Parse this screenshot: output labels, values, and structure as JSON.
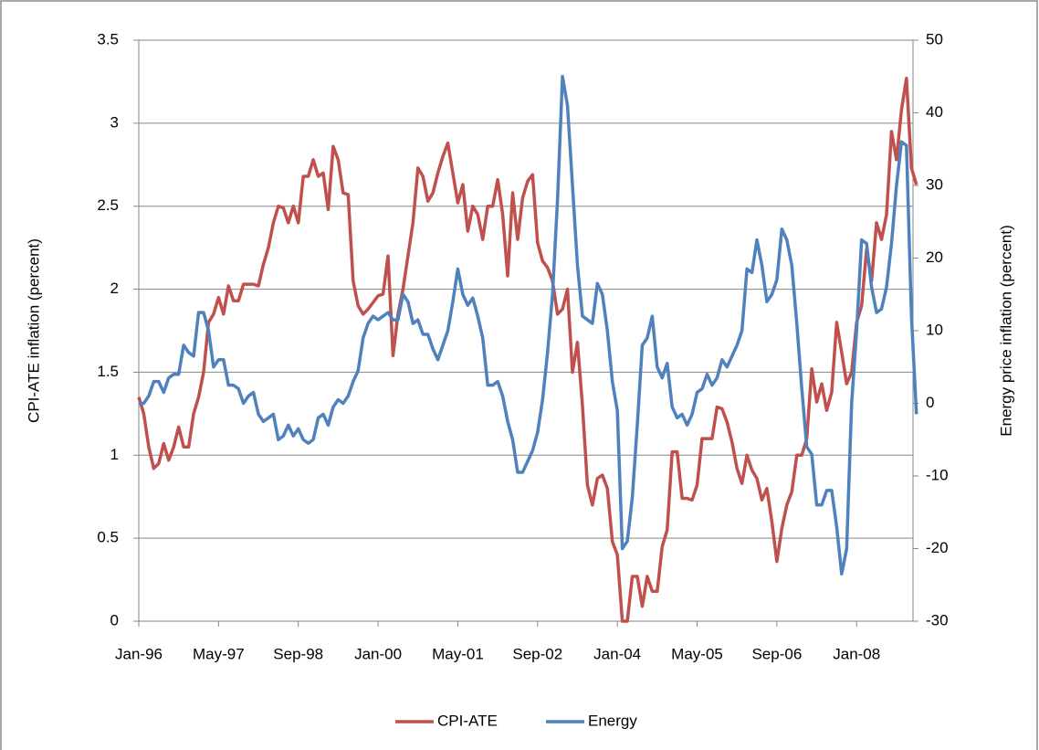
{
  "chart_data": {
    "type": "line",
    "categories": [
      "Jan-96",
      null,
      null,
      null,
      null,
      null,
      null,
      null,
      null,
      null,
      null,
      null,
      null,
      null,
      null,
      null,
      "May-97",
      null,
      null,
      null,
      null,
      null,
      null,
      null,
      null,
      null,
      null,
      null,
      null,
      null,
      null,
      null,
      "Sep-98",
      null,
      null,
      null,
      null,
      null,
      null,
      null,
      null,
      null,
      null,
      null,
      null,
      null,
      null,
      null,
      "Jan-00",
      null,
      null,
      null,
      null,
      null,
      null,
      null,
      null,
      null,
      null,
      null,
      null,
      null,
      null,
      null,
      "May-01",
      null,
      null,
      null,
      null,
      null,
      null,
      null,
      null,
      null,
      null,
      null,
      null,
      null,
      null,
      null,
      "Sep-02",
      null,
      null,
      null,
      null,
      null,
      null,
      null,
      null,
      null,
      null,
      null,
      null,
      null,
      null,
      null,
      "Jan-04",
      null,
      null,
      null,
      null,
      null,
      null,
      null,
      null,
      null,
      null,
      null,
      null,
      null,
      null,
      null,
      "May-05",
      null,
      null,
      null,
      null,
      null,
      null,
      null,
      null,
      null,
      null,
      null,
      null,
      null,
      null,
      null,
      "Sep-06",
      null,
      null,
      null,
      null,
      null,
      null,
      null,
      null,
      null,
      null,
      null,
      null,
      null,
      null,
      null,
      "Jan-08",
      null,
      null,
      null,
      null,
      null,
      null,
      null,
      null,
      null,
      null,
      null,
      null
    ],
    "series": [
      {
        "name": "CPI-ATE",
        "color": "#c0504d",
        "axis": "y",
        "values": [
          1.35,
          1.25,
          1.05,
          0.92,
          0.95,
          1.07,
          0.97,
          1.05,
          1.17,
          1.05,
          1.05,
          1.25,
          1.35,
          1.5,
          1.8,
          1.85,
          1.95,
          1.85,
          2.02,
          1.93,
          1.93,
          2.03,
          2.03,
          2.03,
          2.02,
          2.15,
          2.25,
          2.4,
          2.5,
          2.49,
          2.4,
          2.5,
          2.4,
          2.68,
          2.68,
          2.78,
          2.68,
          2.7,
          2.48,
          2.86,
          2.78,
          2.58,
          2.57,
          2.05,
          1.9,
          1.85,
          1.88,
          1.92,
          1.96,
          1.97,
          2.2,
          1.6,
          1.85,
          2.0,
          2.2,
          2.4,
          2.73,
          2.68,
          2.53,
          2.58,
          2.7,
          2.8,
          2.88,
          2.7,
          2.52,
          2.63,
          2.35,
          2.5,
          2.45,
          2.3,
          2.5,
          2.5,
          2.66,
          2.45,
          2.08,
          2.58,
          2.3,
          2.55,
          2.65,
          2.69,
          2.28,
          2.17,
          2.13,
          2.05,
          1.85,
          1.88,
          2.0,
          1.5,
          1.68,
          1.3,
          0.82,
          0.7,
          0.86,
          0.88,
          0.8,
          0.48,
          0.4,
          0.0,
          0.0,
          0.27,
          0.27,
          0.09,
          0.27,
          0.18,
          0.18,
          0.45,
          0.55,
          1.02,
          1.02,
          0.74,
          0.74,
          0.73,
          0.82,
          1.1,
          1.1,
          1.1,
          1.29,
          1.28,
          1.2,
          1.08,
          0.92,
          0.83,
          1.0,
          0.91,
          0.86,
          0.73,
          0.8,
          0.6,
          0.36,
          0.56,
          0.7,
          0.78,
          1.0,
          1.0,
          1.1,
          1.52,
          1.32,
          1.43,
          1.27,
          1.38,
          1.8,
          1.62,
          1.43,
          1.5,
          1.8,
          1.9,
          2.24,
          2.05,
          2.4,
          2.3,
          2.45,
          2.95,
          2.78,
          3.08,
          3.27,
          2.73,
          2.63
        ]
      },
      {
        "name": "Energy",
        "color": "#4f81bd",
        "axis": "y2",
        "values": [
          0,
          0,
          1,
          3,
          3,
          1.5,
          3.5,
          4,
          4,
          8,
          7,
          6.5,
          12.5,
          12.5,
          10,
          5,
          6,
          6,
          2.5,
          2.5,
          2,
          0,
          1,
          1.5,
          -1.5,
          -2.5,
          -2,
          -1.5,
          -5,
          -4.5,
          -3,
          -4.5,
          -3.5,
          -5,
          -5.5,
          -5,
          -2,
          -1.5,
          -3,
          -0.5,
          0.5,
          0,
          1,
          3,
          4.5,
          9,
          11,
          12,
          11.5,
          12,
          12.5,
          11.5,
          11.5,
          15,
          14,
          11,
          11.5,
          9.5,
          9.5,
          7.5,
          6,
          8,
          10,
          14,
          18.5,
          15,
          13.5,
          14.5,
          12,
          9,
          2.5,
          2.5,
          3,
          1,
          -2.5,
          -5,
          -9.5,
          -9.5,
          -8,
          -6.5,
          -4,
          0.5,
          7,
          15,
          28,
          45,
          41,
          30,
          19,
          12,
          11.5,
          11,
          16.5,
          15,
          10,
          3,
          -1,
          -20,
          -19,
          -13,
          -3,
          8,
          9,
          12,
          5,
          3.5,
          5.5,
          -0.5,
          -2,
          -1.5,
          -3,
          -1.5,
          1.5,
          2,
          4,
          2.5,
          3.5,
          6,
          5,
          6.5,
          8,
          10,
          18.5,
          18,
          22.5,
          19,
          14,
          15,
          17,
          24,
          22.5,
          19,
          11,
          2,
          -6,
          -7,
          -14,
          -14,
          -12,
          -12,
          -17,
          -23.5,
          -20,
          0,
          10,
          22.5,
          22,
          16,
          12.5,
          13,
          16,
          22,
          30,
          36,
          35.5,
          12,
          -1.5
        ]
      }
    ],
    "ylabel": "CPI-ATE inflation (percent)",
    "y2label": "Energy price inflation (percent)",
    "ylim": [
      0,
      3.5
    ],
    "yticks": [
      0,
      0.5,
      1,
      1.5,
      2,
      2.5,
      3,
      3.5
    ],
    "y2lim": [
      -30,
      50
    ],
    "y2ticks": [
      -30,
      -20,
      -10,
      0,
      10,
      20,
      30,
      40,
      50
    ],
    "grid": true,
    "legend": "bottom"
  }
}
